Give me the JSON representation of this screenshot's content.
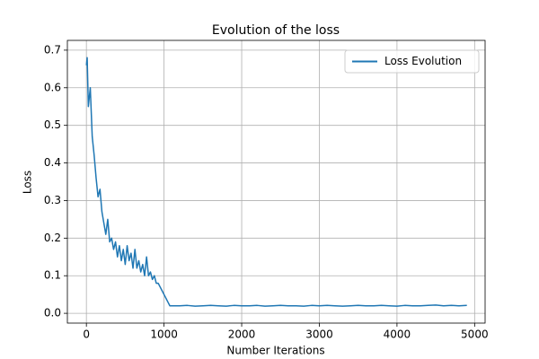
{
  "chart_data": {
    "type": "line",
    "title": "Evolution of the loss",
    "x_label": "Number Iterations",
    "y_label": "Loss",
    "x": [
      0,
      10,
      25,
      50,
      75,
      100,
      125,
      150,
      175,
      200,
      225,
      250,
      275,
      300,
      325,
      350,
      375,
      400,
      425,
      450,
      475,
      500,
      525,
      550,
      575,
      600,
      625,
      650,
      675,
      700,
      725,
      750,
      775,
      800,
      825,
      850,
      875,
      900,
      925,
      950,
      975,
      1000,
      1025,
      1050,
      1075,
      1100,
      1200,
      1300,
      1400,
      1500,
      1600,
      1700,
      1800,
      1900,
      2000,
      2100,
      2200,
      2300,
      2400,
      2500,
      2600,
      2700,
      2800,
      2900,
      3000,
      3100,
      3200,
      3300,
      3400,
      3500,
      3600,
      3700,
      3800,
      3900,
      4000,
      4100,
      4200,
      4300,
      4400,
      4500,
      4600,
      4700,
      4800,
      4900
    ],
    "series": [
      {
        "name": "Loss Evolution",
        "color": "#1f77b4",
        "values": [
          0.66,
          0.68,
          0.55,
          0.6,
          0.47,
          0.42,
          0.36,
          0.31,
          0.33,
          0.27,
          0.24,
          0.21,
          0.25,
          0.19,
          0.2,
          0.17,
          0.19,
          0.15,
          0.18,
          0.14,
          0.17,
          0.13,
          0.18,
          0.14,
          0.16,
          0.12,
          0.17,
          0.12,
          0.14,
          0.11,
          0.13,
          0.1,
          0.15,
          0.1,
          0.11,
          0.09,
          0.1,
          0.08,
          0.08,
          0.07,
          0.06,
          0.05,
          0.04,
          0.03,
          0.02,
          0.02,
          0.02,
          0.021,
          0.019,
          0.02,
          0.021,
          0.02,
          0.019,
          0.021,
          0.02,
          0.02,
          0.021,
          0.019,
          0.02,
          0.021,
          0.02,
          0.02,
          0.019,
          0.021,
          0.02,
          0.021,
          0.02,
          0.019,
          0.02,
          0.021,
          0.02,
          0.02,
          0.021,
          0.02,
          0.019,
          0.021,
          0.02,
          0.02,
          0.021,
          0.022,
          0.02,
          0.021,
          0.02,
          0.021
        ]
      }
    ],
    "xlim": [
      -245,
      5135
    ],
    "ylim": [
      -0.026,
      0.726
    ],
    "xticks": [
      0,
      1000,
      2000,
      3000,
      4000,
      5000
    ],
    "yticks": [
      {
        "value": 0,
        "label": "0.0"
      },
      0.1,
      0.2,
      0.3,
      0.4,
      0.5,
      0.6,
      0.7
    ],
    "grid": true,
    "legend": "upper right"
  }
}
